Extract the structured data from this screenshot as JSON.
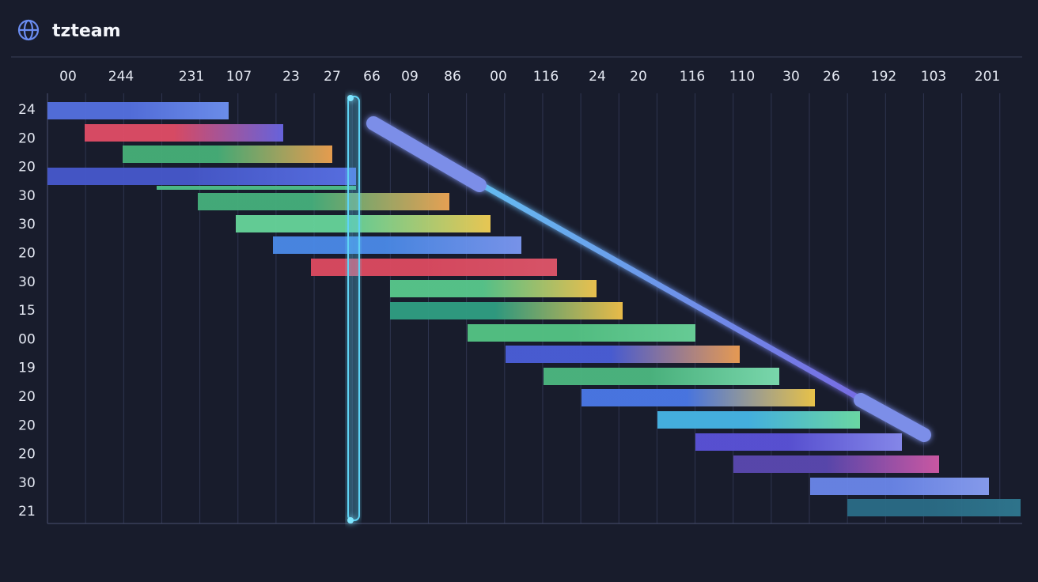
{
  "header": {
    "title": "tzteam"
  },
  "columns": [
    "00",
    "244",
    "231",
    "107",
    "23",
    "27",
    "66",
    "09",
    "86",
    "00",
    "116",
    "24",
    "20",
    "116",
    "110",
    "30",
    "26",
    "192",
    "103",
    "201"
  ],
  "rows": [
    "24",
    "20",
    "20",
    "30",
    "30",
    "20",
    "30",
    "15",
    "00",
    "19",
    "20",
    "20",
    "20",
    "30",
    "21"
  ]
}
